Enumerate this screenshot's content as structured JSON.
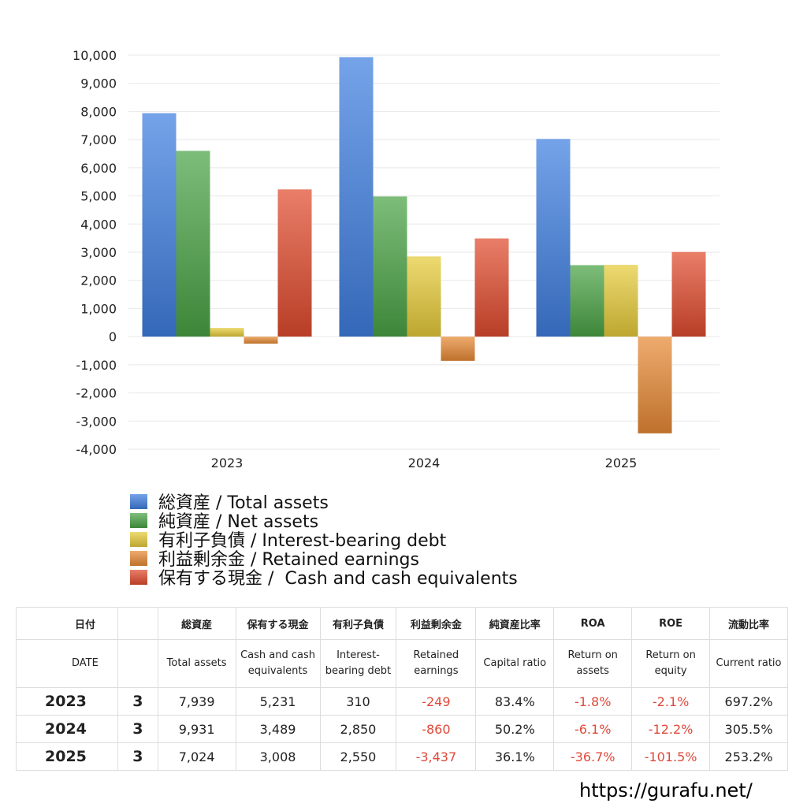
{
  "chart_data": {
    "type": "bar",
    "categories": [
      "2023",
      "2024",
      "2025"
    ],
    "series": [
      {
        "name": "総資産 / Total assets",
        "values": [
          7939,
          9931,
          7024
        ],
        "color": "#3f7fe0"
      },
      {
        "name": "純資産 / Net assets",
        "values": [
          6600,
          4980,
          2540
        ],
        "color": "#4aa346"
      },
      {
        "name": "有利子負債 / Interest-bearing debt",
        "values": [
          310,
          2850,
          2550
        ],
        "color": "#e6cc3a"
      },
      {
        "name": "利益剰余金 / Retained earnings",
        "values": [
          -249,
          -860,
          -3437
        ],
        "color": "#e88a36"
      },
      {
        "name": "保有する現金 /  Cash and cash equivalents",
        "values": [
          5231,
          3489,
          3008
        ],
        "color": "#e04c2e"
      }
    ],
    "ylim": [
      -4000,
      10000
    ],
    "yticks": [
      10000,
      9000,
      8000,
      7000,
      6000,
      5000,
      4000,
      3000,
      2000,
      1000,
      0,
      -1000,
      -2000,
      -3000,
      -4000
    ],
    "ytick_labels": [
      "10,000",
      "9,000",
      "8,000",
      "7,000",
      "6,000",
      "5,000",
      "4,000",
      "3,000",
      "2,000",
      "1,000",
      "0",
      "-1,000",
      "-2,000",
      "-3,000",
      "-4,000"
    ],
    "grid": true,
    "legend_position": "bottom"
  },
  "table": {
    "header_ja": [
      "日付",
      "",
      "総資産",
      "保有する現金",
      "有利子負債",
      "利益剰余金",
      "純資産比率",
      "ROA",
      "ROE",
      "流動比率"
    ],
    "header_en": [
      "DATE",
      "",
      "Total assets",
      "Cash and cash equivalents",
      "Interest-bearing debt",
      "Retained earnings",
      "Capital ratio",
      "Return on assets",
      "Return on equity",
      "Current ratio"
    ],
    "rows": [
      [
        "2023",
        "3",
        "7,939",
        "5,231",
        "310",
        "-249",
        "83.4%",
        "-1.8%",
        "-2.1%",
        "697.2%"
      ],
      [
        "2024",
        "3",
        "9,931",
        "3,489",
        "2,850",
        "-860",
        "50.2%",
        "-6.1%",
        "-12.2%",
        "305.5%"
      ],
      [
        "2025",
        "3",
        "7,024",
        "3,008",
        "2,550",
        "-3,437",
        "36.1%",
        "-36.7%",
        "-101.5%",
        "253.2%"
      ]
    ]
  },
  "footer": {
    "url": "https://gurafu.net/"
  }
}
